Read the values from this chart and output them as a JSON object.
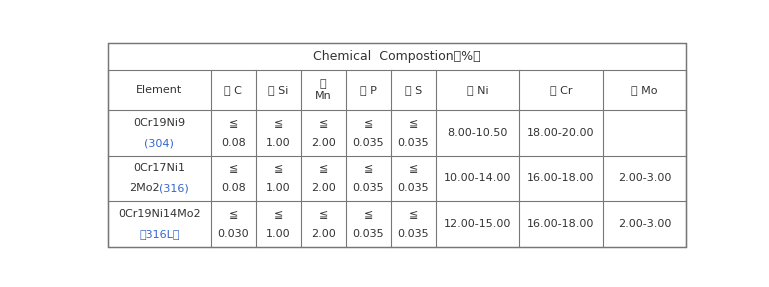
{
  "title": "Chemical  Compostion（%）",
  "col_headers_line1": [
    "Element",
    "硃 C",
    "硅 Si",
    "锨",
    "磷 P",
    "硫 S",
    "镖 Ni",
    "锂 Cr",
    "鉄 Mo"
  ],
  "col_headers_line2": [
    "",
    "",
    "",
    "Mn",
    "",
    "",
    "",
    "",
    ""
  ],
  "rows": [
    {
      "elem_black": "0Cr19Ni9",
      "elem_black2": "",
      "elem_blue": "(304)",
      "c_top": "≦",
      "c_bot": "0.08",
      "si_top": "≦",
      "si_bot": "1.00",
      "mn_top": "≦",
      "mn_bot": "2.00",
      "p_top": "≦",
      "p_bot": "0.035",
      "s_top": "≦",
      "s_bot": "0.035",
      "ni": "8.00-10.50",
      "cr": "18.00-20.00",
      "mo": ""
    },
    {
      "elem_black": "0Cr17Ni1",
      "elem_black2": "2Mo2",
      "elem_blue": "(316)",
      "c_top": "≦",
      "c_bot": "0.08",
      "si_top": "≦",
      "si_bot": "1.00",
      "mn_top": "≦",
      "mn_bot": "2.00",
      "p_top": "≦",
      "p_bot": "0.035",
      "s_top": "≦",
      "s_bot": "0.035",
      "ni": "10.00-14.00",
      "cr": "16.00-18.00",
      "mo": "2.00-3.00"
    },
    {
      "elem_black": "0Cr19Ni14Mo2",
      "elem_black2": "",
      "elem_blue": "（316L）",
      "c_top": "≦",
      "c_bot": "0.030",
      "si_top": "≦",
      "si_bot": "1.00",
      "mn_top": "≦",
      "mn_bot": "2.00",
      "p_top": "≦",
      "p_bot": "0.035",
      "s_top": "≦",
      "s_bot": "0.035",
      "ni": "12.00-15.00",
      "cr": "16.00-18.00",
      "mo": "2.00-3.00"
    }
  ],
  "col_widths_rel": [
    1.6,
    0.7,
    0.7,
    0.7,
    0.7,
    0.7,
    1.3,
    1.3,
    1.3
  ],
  "text_color": "#333333",
  "blue_color": "#3366cc",
  "border_color": "#777777",
  "font_size": 8.0,
  "title_font_size": 9.0,
  "bg_color": "#ffffff"
}
